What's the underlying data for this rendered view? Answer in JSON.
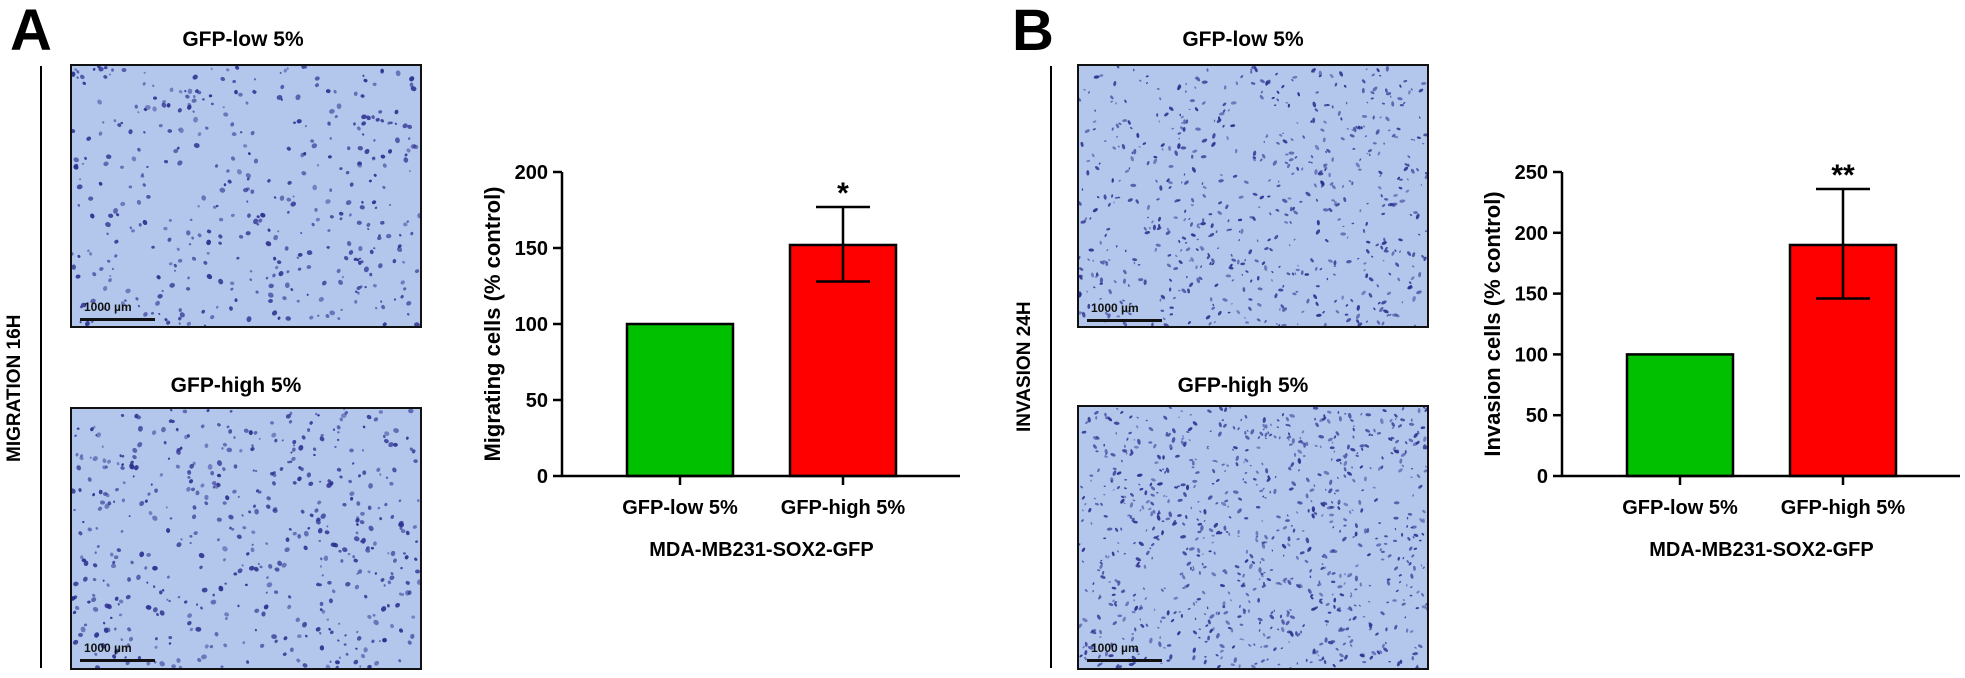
{
  "panels": [
    {
      "letter": "A",
      "side_label": "MIGRATION 16H",
      "images": [
        {
          "title": "GFP-low 5%",
          "scale_label": "1000 µm"
        },
        {
          "title": "GFP-high 5%",
          "scale_label": "1000 µm"
        }
      ]
    },
    {
      "letter": "B",
      "side_label": "INVASION 24H",
      "images": [
        {
          "title": "GFP-low 5%",
          "scale_label": "1000 µm"
        },
        {
          "title": "GFP-high 5%",
          "scale_label": "1000 µm"
        }
      ]
    }
  ],
  "colors": {
    "low": "#00c000",
    "high": "#ff0000",
    "micro_bg": "#b3c7ec",
    "cell": "#2b2f8f"
  },
  "chart_data": [
    {
      "type": "bar",
      "categories": [
        "GFP-low 5%",
        "GFP-high 5%"
      ],
      "values": [
        100,
        152
      ],
      "error_low": [
        null,
        128
      ],
      "error_high": [
        null,
        177
      ],
      "significance": [
        "",
        "*"
      ],
      "ylabel": "Migrating cells (% control)",
      "xlabel": "MDA-MB231-SOX2-GFP",
      "ylim": [
        0,
        200
      ],
      "yticks": [
        0,
        50,
        100,
        150,
        200
      ]
    },
    {
      "type": "bar",
      "categories": [
        "GFP-low 5%",
        "GFP-high 5%"
      ],
      "values": [
        100,
        190
      ],
      "error_low": [
        null,
        146
      ],
      "error_high": [
        null,
        236
      ],
      "significance": [
        "",
        "**"
      ],
      "ylabel": "Invasion cells (% control)",
      "xlabel": "MDA-MB231-SOX2-GFP",
      "ylim": [
        0,
        250
      ],
      "yticks": [
        0,
        50,
        100,
        150,
        200,
        250
      ]
    }
  ]
}
